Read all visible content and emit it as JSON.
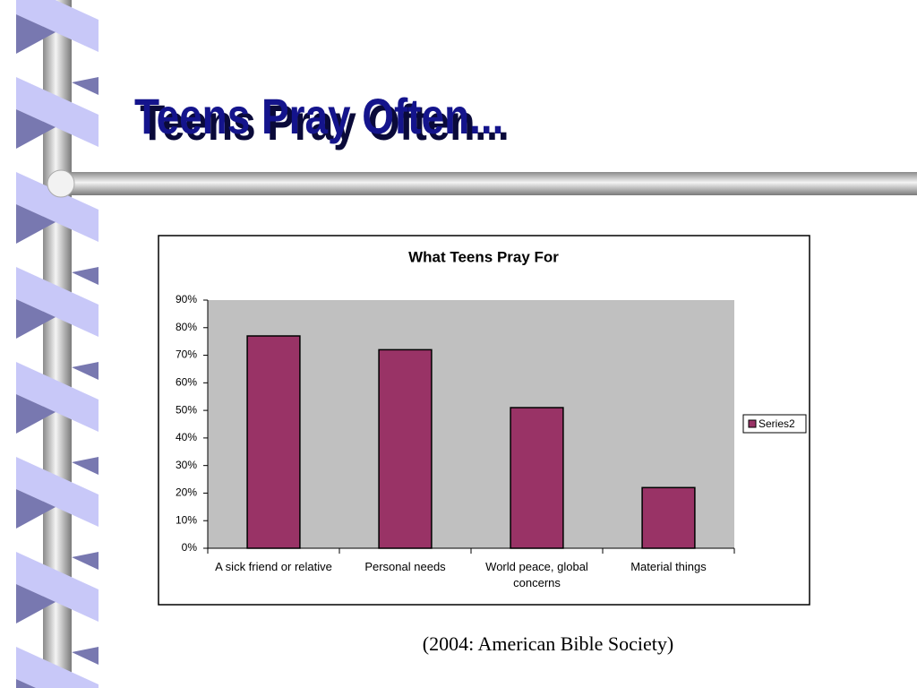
{
  "heading": "Teens Pray Often...",
  "source": "(2004: American Bible Society)",
  "chart_data": {
    "type": "bar",
    "title": "What Teens Pray For",
    "categories": [
      "A sick friend or relative",
      "Personal needs",
      "World peace, global concerns",
      "Material things"
    ],
    "series": [
      {
        "name": "Series2",
        "color": "#993366",
        "values": [
          77,
          72,
          51,
          22
        ]
      }
    ],
    "ylim": [
      0,
      90
    ],
    "yticks": [
      {
        "value": 0,
        "label": "0%"
      },
      {
        "value": 10,
        "label": "10%"
      },
      {
        "value": 20,
        "label": "20%"
      },
      {
        "value": 30,
        "label": "30%"
      },
      {
        "value": 40,
        "label": "40%"
      },
      {
        "value": 50,
        "label": "50%"
      },
      {
        "value": 60,
        "label": "60%"
      },
      {
        "value": 70,
        "label": "70%"
      },
      {
        "value": 80,
        "label": "80%"
      },
      {
        "value": 90,
        "label": "90%"
      }
    ],
    "legend": "right",
    "plot_background": "#c0c0c0"
  }
}
